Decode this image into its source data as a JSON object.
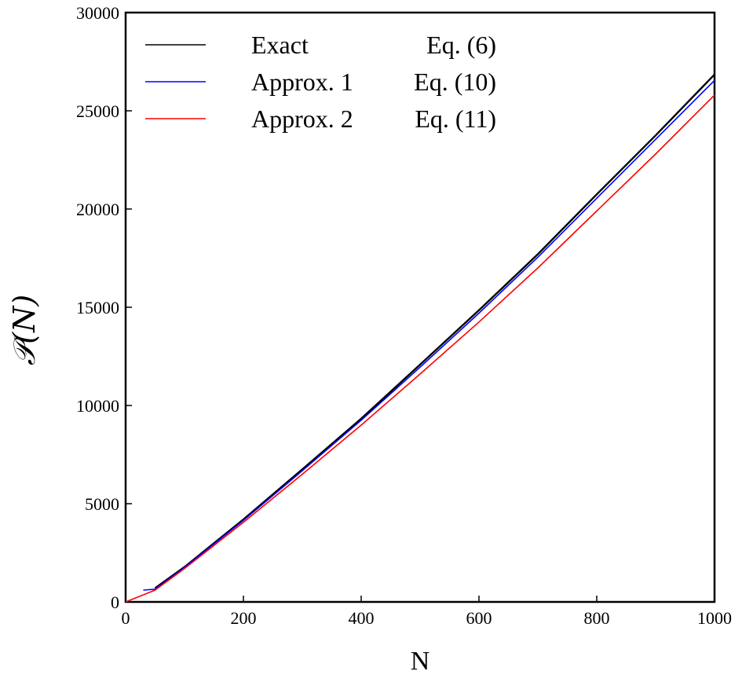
{
  "chart_data": {
    "type": "line",
    "title": "",
    "xlabel": "N",
    "ylabel": "𝒫(N)",
    "xlim": [
      0,
      1000
    ],
    "ylim": [
      0,
      30000
    ],
    "xticks": [
      0,
      200,
      400,
      600,
      800,
      1000
    ],
    "yticks": [
      0,
      5000,
      10000,
      15000,
      20000,
      25000,
      30000
    ],
    "grid": false,
    "legend_position": "top-left",
    "series": [
      {
        "name": "Exact",
        "equation": "Eq. (6)",
        "color": "#000000",
        "x": [
          50,
          100,
          200,
          300,
          400,
          500,
          600,
          700,
          800,
          900,
          1000
        ],
        "y": [
          700,
          1780,
          4200,
          6750,
          9330,
          12080,
          14850,
          17700,
          20750,
          23750,
          26850
        ]
      },
      {
        "name": "Approx. 1",
        "equation": "Eq. (10)",
        "color": "#0000ff",
        "x": [
          30,
          50,
          100,
          200,
          300,
          400,
          500,
          600,
          700,
          800,
          900,
          1000
        ],
        "y": [
          600,
          650,
          1760,
          4150,
          6680,
          9250,
          11950,
          14700,
          17550,
          20550,
          23550,
          26550
        ]
      },
      {
        "name": "Approx. 2",
        "equation": "Eq. (11)",
        "color": "#ff0000",
        "x": [
          0,
          50,
          100,
          200,
          300,
          400,
          500,
          600,
          700,
          800,
          900,
          1000
        ],
        "y": [
          0,
          600,
          1700,
          4050,
          6500,
          9000,
          11600,
          14250,
          17000,
          19900,
          22800,
          25800
        ]
      }
    ]
  }
}
